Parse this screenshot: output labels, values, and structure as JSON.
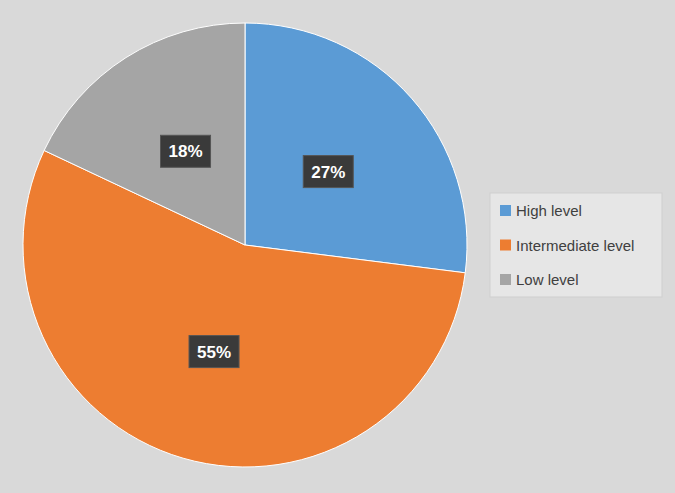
{
  "chart_data": {
    "type": "pie",
    "categories": [
      "High level",
      "Intermediate level",
      "Low level"
    ],
    "values": [
      27,
      55,
      18
    ],
    "value_labels": [
      "27%",
      "55%",
      "18%"
    ],
    "colors": [
      "#5b9bd5",
      "#ed7d31",
      "#a5a5a5"
    ],
    "data_labels": true,
    "legend": "right"
  }
}
